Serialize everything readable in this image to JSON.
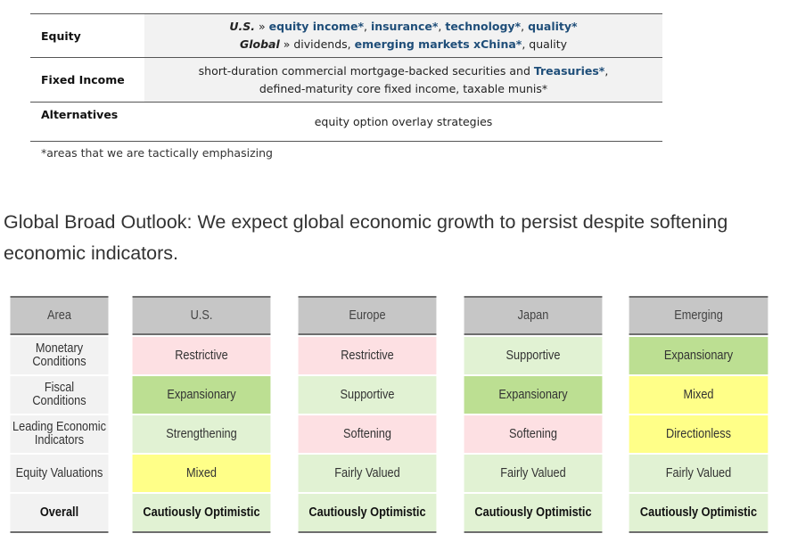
{
  "table1": {
    "rows": [
      {
        "label": "Equity",
        "line1": {
          "prefix": "U.S.",
          "sep": " » ",
          "items": [
            "equity income*",
            ", ",
            "insurance*",
            ", ",
            "technology*",
            ", ",
            "quality*"
          ]
        },
        "line2": {
          "prefix": "Global",
          "sep": " » ",
          "items": [
            "dividends, ",
            "emerging markets xChina*",
            ", quality"
          ]
        }
      },
      {
        "label": "Fixed Income",
        "line1": {
          "text": "short-duration commercial mortgage-backed securities and ",
          "hl": "Treasuries*",
          "tail": ","
        },
        "line2": {
          "text": "defined-maturity core fixed income, taxable munis*"
        }
      },
      {
        "label": "Alternatives",
        "line1": {
          "text": "equity option overlay strategies"
        }
      }
    ],
    "footnote": "*areas that we are tactically emphasizing"
  },
  "heading": "Global Broad Outlook: We expect global economic growth to persist despite softening economic indicators.",
  "outlook": {
    "columns": [
      "Area",
      "U.S.",
      "Europe",
      "Japan",
      "Emerging"
    ],
    "rows": [
      {
        "label": "Monetary Conditions",
        "values": [
          "Restrictive",
          "Restrictive",
          "Supportive",
          "Expansionary"
        ]
      },
      {
        "label": "Fiscal Conditions",
        "values": [
          "Expansionary",
          "Supportive",
          "Expansionary",
          "Mixed"
        ]
      },
      {
        "label": "Leading Economic Indicators",
        "values": [
          "Strengthening",
          "Softening",
          "Softening",
          "Directionless"
        ]
      },
      {
        "label": "Equity Valuations",
        "values": [
          "Mixed",
          "Fairly Valued",
          "Fairly Valued",
          "Fairly Valued"
        ]
      },
      {
        "label": "Overall",
        "values": [
          "Cautiously Optimistic",
          "Cautiously Optimistic",
          "Cautiously Optimistic",
          "Cautiously Optimistic"
        ]
      }
    ],
    "colors": {
      "Restrictive": "#fde0e3",
      "Softening": "#fde0e3",
      "Supportive": "#e1f2d3",
      "Strengthening": "#e1f2d3",
      "Fairly Valued": "#e1f2d3",
      "Cautiously Optimistic": "#e1f2d3",
      "Expansionary": "#bcdf92",
      "Mixed": "#ffff88",
      "Directionless": "#ffff88"
    }
  }
}
